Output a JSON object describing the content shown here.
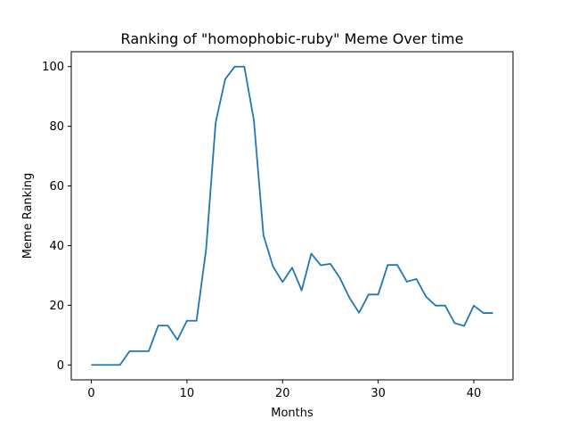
{
  "chart_data": {
    "type": "line",
    "title": "Ranking of \"homophobic-ruby\" Meme Over time",
    "xlabel": "Months",
    "ylabel": "Meme Ranking",
    "xlim": [
      -2.1,
      44.1
    ],
    "ylim": [
      -5,
      105
    ],
    "xticks": [
      0,
      10,
      20,
      30,
      40
    ],
    "yticks": [
      0,
      20,
      40,
      60,
      80,
      100
    ],
    "grid": false,
    "series": [
      {
        "color": "#1f77b4",
        "x": [
          0,
          1,
          2,
          3,
          4,
          5,
          6,
          7,
          8,
          9,
          10,
          11,
          12,
          13,
          14,
          15,
          16,
          17,
          18,
          19,
          20,
          21,
          22,
          23,
          24,
          25,
          26,
          27,
          28,
          29,
          30,
          31,
          32,
          33,
          34,
          35,
          36,
          37,
          38,
          39,
          40,
          41,
          42
        ],
        "y": [
          0,
          0,
          0,
          0,
          4.6,
          4.6,
          4.6,
          13.2,
          13.2,
          8.4,
          14.8,
          14.8,
          38.6,
          81.2,
          95.8,
          100,
          100,
          82,
          43.5,
          33,
          27.8,
          32.6,
          25,
          37.3,
          33.4,
          33.9,
          29.1,
          22.5,
          17.5,
          23.6,
          23.6,
          33.5,
          33.5,
          27.9,
          28.8,
          22.9,
          19.9,
          19.9,
          14,
          13.1,
          19.9,
          17.4,
          17.4
        ]
      }
    ]
  }
}
